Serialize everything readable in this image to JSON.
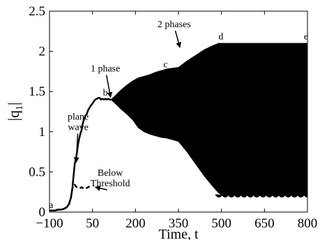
{
  "chart_data": {
    "type": "line",
    "xlabel": "Time, t",
    "ylabel_main": "|q",
    "ylabel_sub": "1",
    "ylabel_end": "|",
    "xlim": [
      -100,
      800
    ],
    "ylim": [
      0,
      2.5
    ],
    "x_ticks": [
      -100,
      50,
      200,
      350,
      500,
      650,
      800
    ],
    "y_ticks": [
      0,
      0.5,
      1,
      1.5,
      2,
      2.5
    ],
    "x_tick_labels": [
      "−100",
      "50",
      "200",
      "350",
      "500",
      "650",
      "800"
    ],
    "y_tick_labels": [
      "0",
      "0.5",
      "1",
      "1.5",
      "2",
      "2.5"
    ],
    "grid": false,
    "series": [
      {
        "style": "solid",
        "x": [
          -100,
          -90,
          -80,
          -70,
          -60,
          -50,
          -40,
          -32,
          -25,
          -20,
          -16,
          -12,
          -8,
          -4,
          0,
          4,
          8,
          12,
          16,
          20,
          25,
          30,
          35,
          40,
          45,
          50,
          55,
          60,
          65,
          70,
          75,
          80,
          85,
          90,
          95,
          100,
          105,
          110,
          115
        ],
        "y": [
          0.02,
          0.02,
          0.02,
          0.03,
          0.03,
          0.04,
          0.06,
          0.1,
          0.18,
          0.3,
          0.45,
          0.6,
          0.66,
          0.75,
          0.85,
          0.92,
          0.98,
          1.02,
          1.1,
          1.15,
          1.2,
          1.22,
          1.27,
          1.3,
          1.33,
          1.35,
          1.38,
          1.4,
          1.41,
          1.42,
          1.42,
          1.4,
          1.41,
          1.4,
          1.41,
          1.4,
          1.41,
          1.4,
          1.4
        ]
      },
      {
        "style": "envelope-upper",
        "x": [
          115,
          130,
          150,
          170,
          190,
          210,
          230,
          250,
          270,
          290,
          310,
          330,
          350,
          380,
          410,
          440,
          470,
          490,
          500,
          550,
          600,
          650,
          700,
          750,
          800
        ],
        "y": [
          1.4,
          1.45,
          1.52,
          1.58,
          1.63,
          1.67,
          1.69,
          1.71,
          1.74,
          1.76,
          1.78,
          1.79,
          1.8,
          1.88,
          1.95,
          2.02,
          2.07,
          2.1,
          2.1,
          2.1,
          2.1,
          2.1,
          2.1,
          2.1,
          2.1
        ]
      },
      {
        "style": "envelope-lower",
        "x": [
          115,
          130,
          150,
          170,
          190,
          210,
          230,
          250,
          270,
          290,
          310,
          330,
          350,
          380,
          410,
          440,
          470,
          490,
          500,
          550,
          600,
          650,
          700,
          750,
          800
        ],
        "y": [
          1.4,
          1.35,
          1.28,
          1.22,
          1.15,
          1.05,
          1.0,
          0.97,
          0.95,
          0.93,
          0.92,
          0.9,
          0.88,
          0.75,
          0.6,
          0.45,
          0.32,
          0.24,
          0.22,
          0.22,
          0.22,
          0.22,
          0.22,
          0.22,
          0.22
        ]
      },
      {
        "style": "dashed",
        "x": [
          -100,
          -90,
          -80,
          -70,
          -60,
          -50,
          -40,
          -32,
          -25,
          -20,
          -16,
          -12,
          -8,
          -4,
          0,
          4,
          8,
          12,
          16,
          20,
          25,
          30,
          35,
          40
        ],
        "y": [
          0.02,
          0.02,
          0.02,
          0.03,
          0.03,
          0.04,
          0.06,
          0.1,
          0.18,
          0.3,
          0.33,
          0.34,
          0.32,
          0.31,
          0.31,
          0.3,
          0.3,
          0.31,
          0.3,
          0.29,
          0.3,
          0.3,
          0.31,
          0.32
        ]
      }
    ],
    "point_labels": [
      {
        "text": "a",
        "x": -95,
        "y": 0.05
      },
      {
        "text": "b",
        "x": 95,
        "y": 1.45
      },
      {
        "text": "c",
        "x": 305,
        "y": 1.8
      },
      {
        "text": "d",
        "x": 498,
        "y": 2.15
      },
      {
        "text": "e",
        "x": 795,
        "y": 2.15
      }
    ],
    "annotations": [
      {
        "lines": [
          "plane",
          "wave"
        ],
        "x": 0,
        "y": 1.15,
        "arrow_to": [
          -7,
          0.62
        ]
      },
      {
        "lines": [
          "1 phase"
        ],
        "x": 95,
        "y": 1.75,
        "arrow_to": [
          113,
          1.43
        ]
      },
      {
        "lines": [
          "2 phases"
        ],
        "x": 335,
        "y": 2.3,
        "arrow_to": [
          355,
          2.05
        ]
      },
      {
        "lines": [
          "Below",
          "Threshold"
        ],
        "x": 112,
        "y": 0.45,
        "arrow_to": [
          60,
          0.31
        ]
      }
    ]
  }
}
